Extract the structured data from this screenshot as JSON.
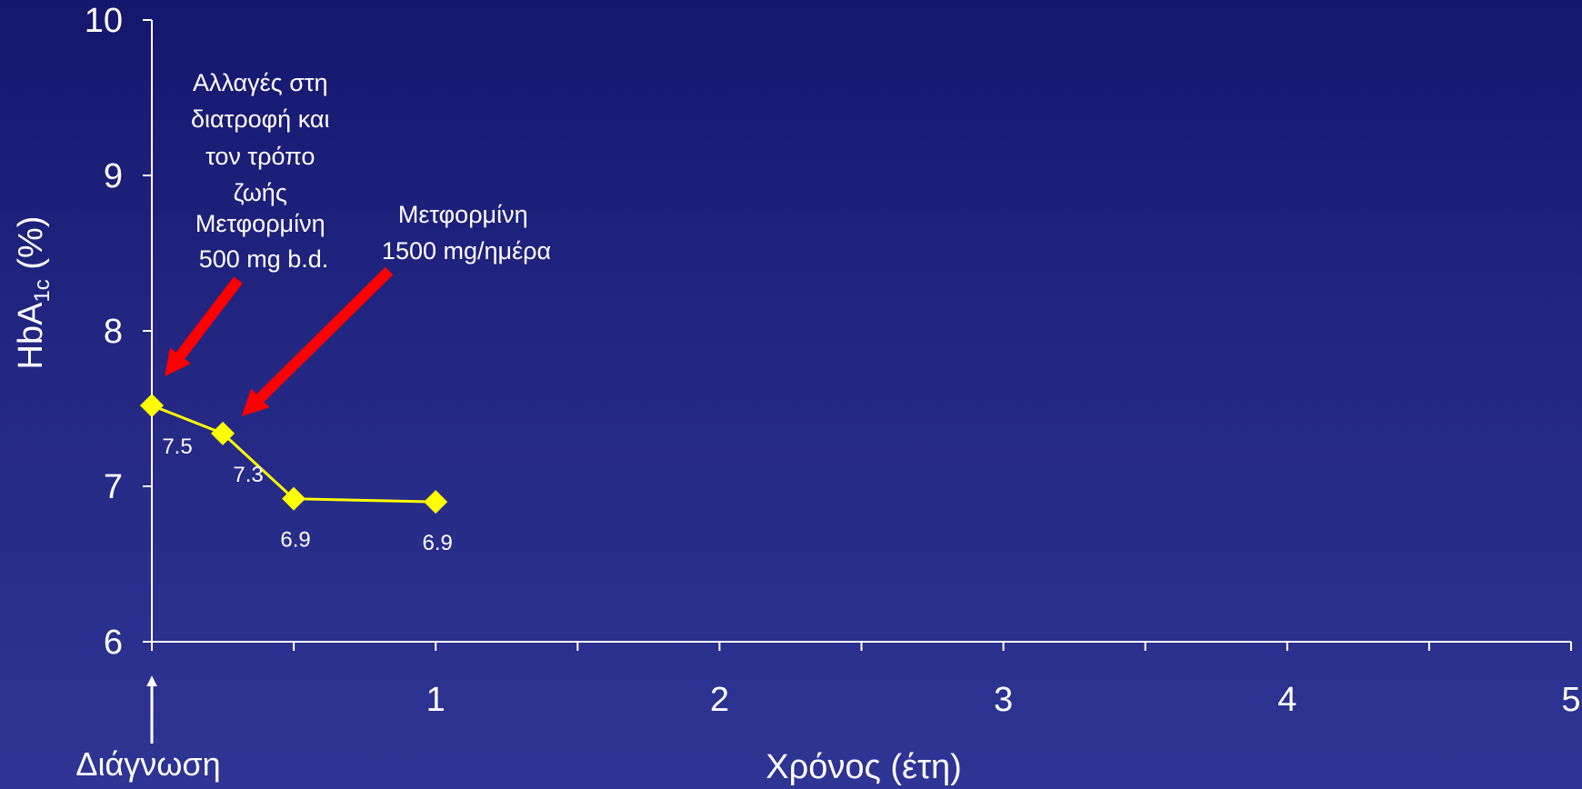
{
  "chart_data": {
    "type": "line",
    "title": "",
    "xlabel": "Χρόνος (έτη)",
    "ylabel": {
      "main": "HbA",
      "sub": "1c",
      "suffix": " (%)"
    },
    "xlim": [
      0,
      5
    ],
    "ylim": [
      6,
      10
    ],
    "x_ticks": [
      0,
      0.5,
      1,
      1.5,
      2,
      2.5,
      3,
      3.5,
      4,
      4.5,
      5
    ],
    "x_tick_labels": [
      {
        "x": 1,
        "label": "1"
      },
      {
        "x": 2,
        "label": "2"
      },
      {
        "x": 3,
        "label": "3"
      },
      {
        "x": 4,
        "label": "4"
      },
      {
        "x": 5,
        "label": "5"
      }
    ],
    "y_ticks": [
      {
        "y": 6,
        "label": "6"
      },
      {
        "y": 7,
        "label": "7"
      },
      {
        "y": 8,
        "label": "8"
      },
      {
        "y": 9,
        "label": "9"
      },
      {
        "y": 10,
        "label": "10"
      }
    ],
    "grid": false,
    "series": [
      {
        "name": "",
        "color": "#ffff00",
        "marker": "diamond",
        "points": [
          {
            "x": 0,
            "y": 7.52,
            "label": "7.5"
          },
          {
            "x": 0.25,
            "y": 7.34,
            "label": "7.3"
          },
          {
            "x": 0.5,
            "y": 6.92,
            "label": "6.9"
          },
          {
            "x": 1,
            "y": 6.9,
            "label": "6.9"
          }
        ]
      }
    ],
    "annotations": [
      {
        "lines": [
          "Αλλαγές στη",
          "διατροφή και",
          "τον τρόπο",
          "ζωής",
          "Μετφορμίνη",
          "500 mg b.d."
        ],
        "arrow_color": "#ff0000",
        "points_to_x": 0
      },
      {
        "lines": [
          "Μετφορμίνη",
          "1500 mg/ημέρα"
        ],
        "arrow_color": "#ff0000",
        "points_to_x": 0.25
      },
      {
        "lines": [
          "Διάγνωση"
        ],
        "arrow_color": "#ffffff",
        "points_to_x": 0
      }
    ]
  }
}
